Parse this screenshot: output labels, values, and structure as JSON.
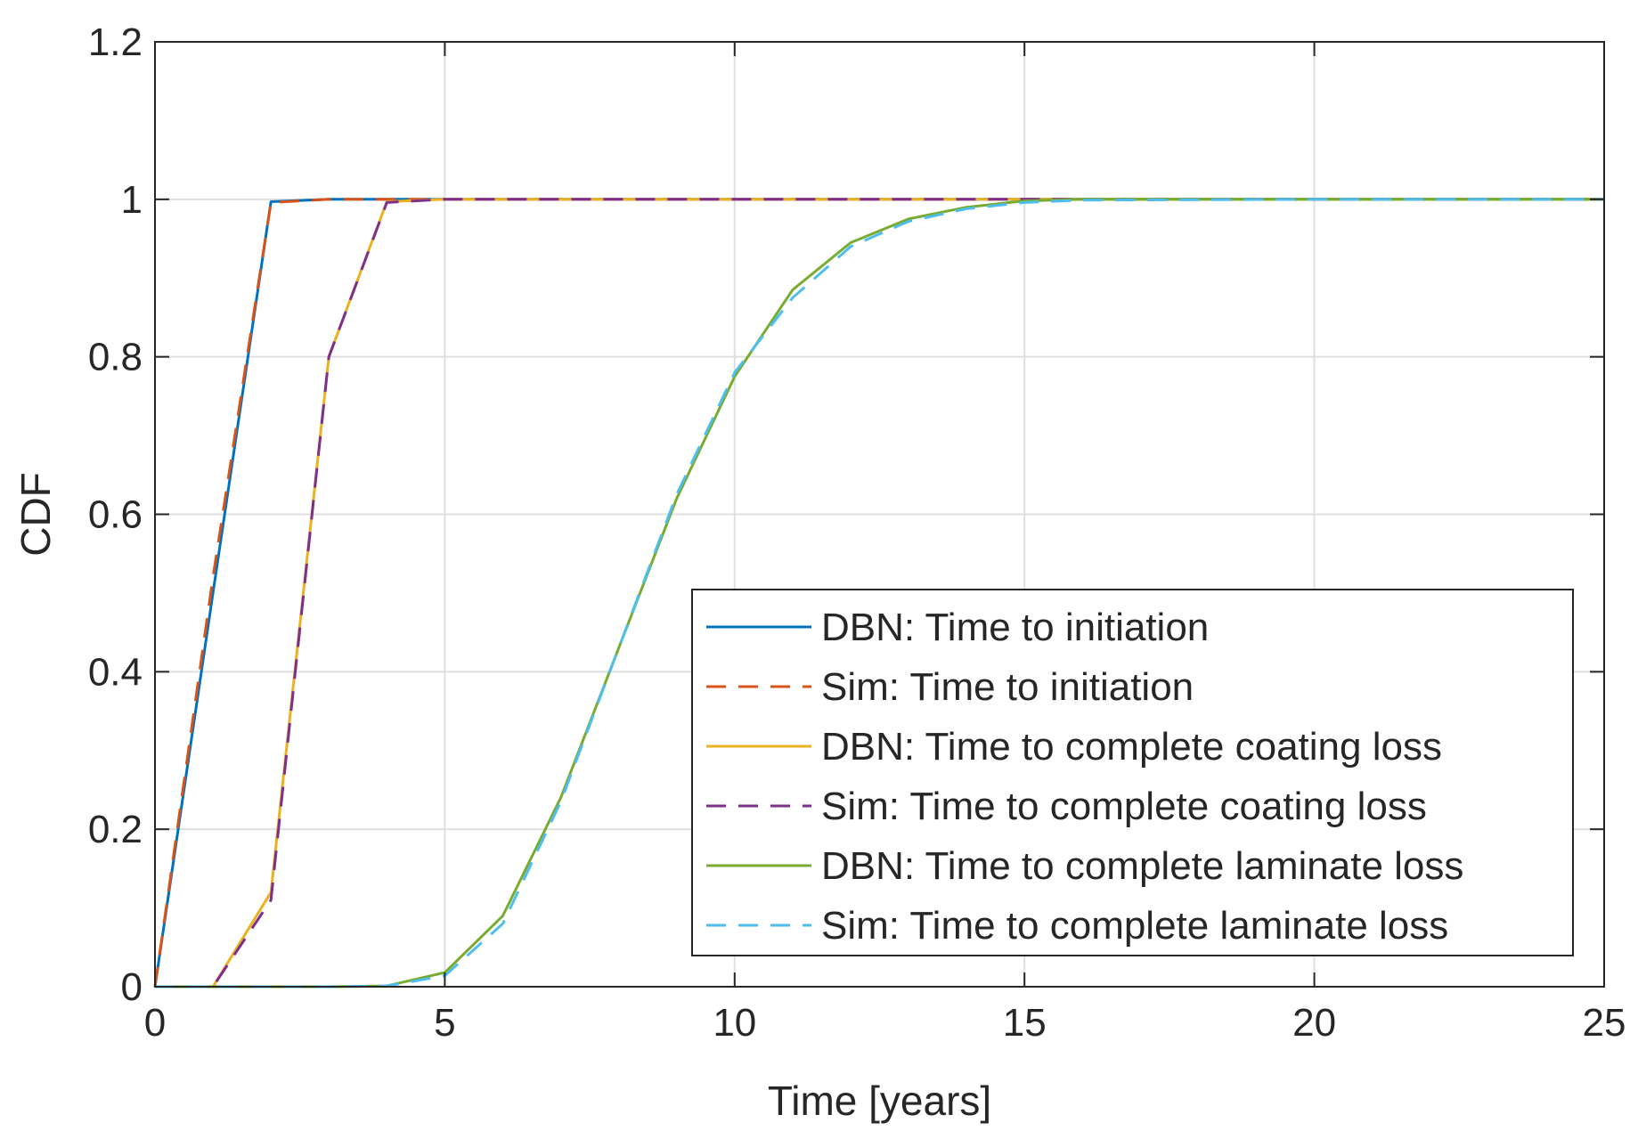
{
  "chart_data": {
    "type": "line",
    "xlabel": "Time [years]",
    "ylabel": "CDF",
    "xlim": [
      0,
      25
    ],
    "ylim": [
      0,
      1.2
    ],
    "xticks": [
      "0",
      "5",
      "10",
      "15",
      "20",
      "25"
    ],
    "yticks": [
      "0",
      "0.2",
      "0.4",
      "0.6",
      "0.8",
      "1",
      "1.2"
    ],
    "grid": true,
    "legend_position": "bottom-right",
    "series": [
      {
        "name": "DBN: Time to initiation",
        "color": "#0072BD",
        "dash": "solid",
        "x": [
          0,
          1,
          2,
          3,
          4,
          5,
          10,
          15,
          20,
          25
        ],
        "y": [
          0,
          0.5,
          0.997,
          1,
          1,
          1,
          1,
          1,
          1,
          1
        ]
      },
      {
        "name": "Sim: Time to initiation",
        "color": "#D95319",
        "dash": "dashed",
        "x": [
          0,
          1,
          2,
          3,
          4,
          5,
          10,
          15,
          20,
          25
        ],
        "y": [
          0,
          0.52,
          0.996,
          1,
          1,
          1,
          1,
          1,
          1,
          1
        ]
      },
      {
        "name": "DBN: Time to complete coating loss",
        "color": "#EDB120",
        "dash": "solid",
        "x": [
          0,
          1,
          2,
          3,
          4,
          5,
          10,
          15,
          20,
          25
        ],
        "y": [
          0,
          0,
          0.12,
          0.8,
          0.997,
          1,
          1,
          1,
          1,
          1
        ]
      },
      {
        "name": "Sim: Time to complete coating loss",
        "color": "#7E2F8E",
        "dash": "dashed",
        "x": [
          0,
          1,
          2,
          3,
          4,
          5,
          10,
          15,
          20,
          25
        ],
        "y": [
          0,
          0,
          0.11,
          0.8,
          0.996,
          1,
          1,
          1,
          1,
          1
        ]
      },
      {
        "name": "DBN: Time to complete laminate loss",
        "color": "#77AC30",
        "dash": "solid",
        "x": [
          0,
          3,
          4,
          5,
          6,
          7,
          8,
          9,
          10,
          11,
          12,
          13,
          14,
          15,
          16,
          20,
          25
        ],
        "y": [
          0,
          0,
          0.001,
          0.018,
          0.09,
          0.24,
          0.43,
          0.62,
          0.775,
          0.885,
          0.945,
          0.975,
          0.99,
          0.998,
          1,
          1,
          1
        ]
      },
      {
        "name": "Sim: Time to complete laminate loss",
        "color": "#4DBEEE",
        "dash": "dashed",
        "x": [
          0,
          3,
          4,
          5,
          6,
          7,
          8,
          9,
          10,
          11,
          12,
          13,
          14,
          15,
          16,
          20,
          25
        ],
        "y": [
          0,
          0,
          0.001,
          0.014,
          0.08,
          0.235,
          0.43,
          0.625,
          0.78,
          0.875,
          0.94,
          0.972,
          0.988,
          0.996,
          0.999,
          1,
          1
        ]
      }
    ]
  }
}
